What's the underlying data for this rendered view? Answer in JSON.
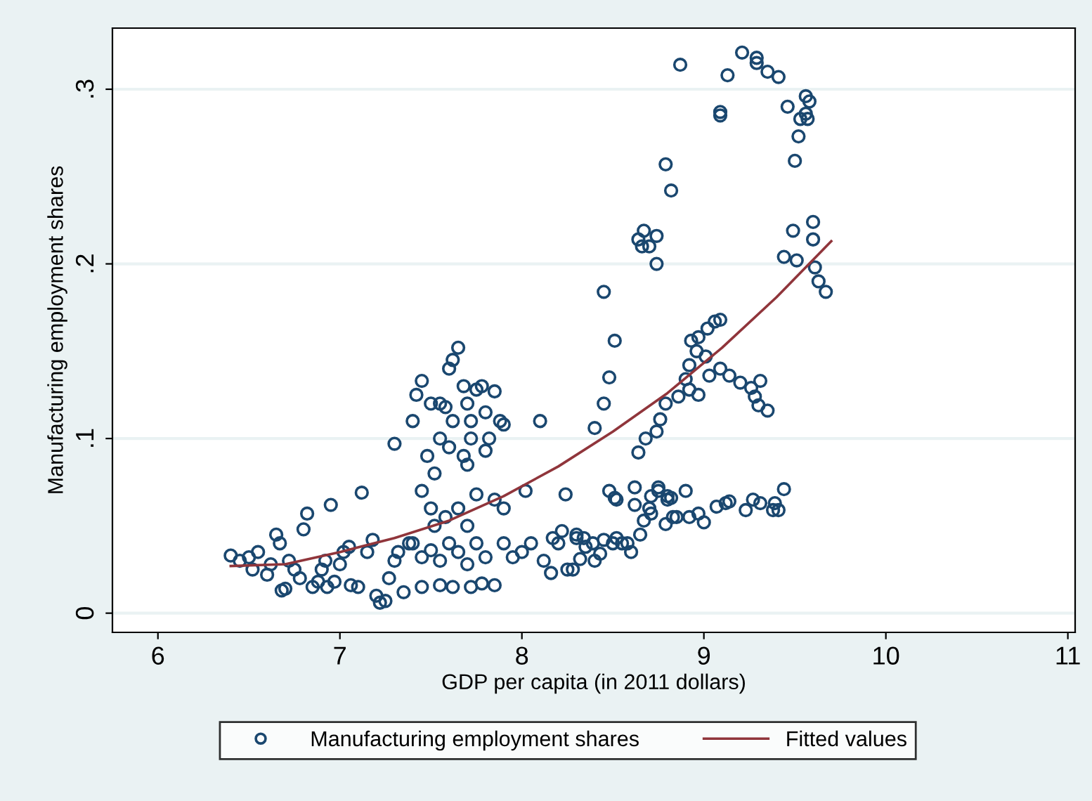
{
  "chart_data": {
    "type": "scatter",
    "xlabel": "GDP per capita (in 2011 dollars)",
    "ylabel": "Manufacturing employment shares",
    "xlim": [
      5.75,
      11.04
    ],
    "xticks": [
      6,
      7,
      8,
      9,
      10,
      11
    ],
    "ylim": [
      -0.011,
      0.335
    ],
    "yticks": [
      0,
      {
        "value": 0.1,
        "label": ".1"
      },
      {
        "value": 0.2,
        "label": ".2"
      },
      {
        "value": 0.3,
        "label": ".3"
      }
    ],
    "grid": "y",
    "legend": "bottom",
    "marker": "circle",
    "series": [
      {
        "name": "Manufacturing employment shares",
        "color": "#1a476f",
        "x": [
          6.4,
          6.45,
          6.5,
          6.55,
          6.52,
          6.6,
          6.62,
          6.65,
          6.67,
          6.68,
          6.7,
          6.72,
          6.75,
          6.78,
          6.8,
          6.82,
          6.85,
          6.88,
          6.9,
          6.92,
          6.93,
          6.95,
          6.97,
          7.0,
          7.02,
          7.05,
          7.06,
          7.1,
          7.12,
          7.15,
          7.18,
          7.2,
          7.22,
          7.25,
          7.27,
          7.3,
          7.32,
          7.3,
          7.35,
          7.38,
          7.4,
          7.42,
          7.45,
          7.5,
          7.48,
          7.45,
          7.5,
          7.52,
          7.55,
          7.58,
          7.6,
          7.62,
          7.65,
          7.68,
          7.7,
          7.72,
          7.75,
          7.78,
          7.8,
          7.82,
          7.85,
          7.88,
          7.9,
          7.72,
          7.7,
          7.68,
          7.62,
          7.55,
          7.6,
          7.65,
          7.58,
          7.52,
          7.8,
          7.75,
          7.7,
          7.85,
          7.4,
          7.45,
          7.5,
          7.55,
          7.6,
          7.62,
          7.65,
          7.7,
          7.72,
          7.75,
          7.78,
          7.8,
          7.85,
          7.9,
          7.45,
          7.55,
          7.9,
          7.95,
          8.0,
          8.02,
          8.05,
          8.1,
          8.12,
          8.2,
          8.25,
          8.3,
          8.35,
          8.4,
          8.45,
          8.48,
          8.5,
          8.52,
          8.55,
          8.6,
          8.65,
          8.7,
          8.75,
          8.8,
          8.85,
          8.9,
          8.45,
          8.51,
          8.48,
          8.45,
          8.4,
          8.64,
          8.68,
          8.74,
          8.76,
          8.79,
          8.86,
          8.9,
          8.92,
          8.96,
          8.97,
          8.93,
          9.02,
          9.06,
          9.09,
          9.01,
          9.03,
          9.09,
          9.14,
          9.2,
          9.26,
          9.31,
          9.28,
          9.3,
          9.35,
          8.97,
          8.92,
          8.24,
          8.17,
          8.22,
          8.3,
          8.34,
          8.39,
          8.43,
          8.52,
          8.58,
          8.32,
          8.28,
          8.16,
          8.51,
          8.62,
          8.62,
          8.71,
          8.75,
          8.8,
          8.82,
          8.67,
          8.71,
          8.79,
          8.83,
          8.92,
          8.97,
          9.0,
          9.07,
          9.12,
          9.14,
          9.23,
          9.27,
          9.31,
          9.38,
          9.41,
          9.39,
          9.44,
          8.87,
          9.21,
          9.29,
          9.29,
          9.35,
          9.41,
          9.13,
          9.09,
          9.09,
          9.56,
          9.58,
          9.46,
          9.56,
          9.53,
          9.57,
          9.52,
          9.5,
          8.79,
          8.82,
          8.67,
          8.64,
          8.66,
          8.7,
          8.74,
          8.74,
          9.49,
          9.6,
          9.6,
          9.44,
          9.51,
          9.61,
          9.63,
          9.67
        ],
        "values": [
          0.033,
          0.03,
          0.032,
          0.035,
          0.025,
          0.022,
          0.028,
          0.045,
          0.04,
          0.013,
          0.014,
          0.03,
          0.025,
          0.02,
          0.048,
          0.057,
          0.015,
          0.018,
          0.025,
          0.03,
          0.015,
          0.062,
          0.018,
          0.028,
          0.035,
          0.038,
          0.016,
          0.015,
          0.069,
          0.035,
          0.042,
          0.01,
          0.006,
          0.007,
          0.02,
          0.03,
          0.035,
          0.097,
          0.012,
          0.04,
          0.11,
          0.125,
          0.133,
          0.12,
          0.09,
          0.07,
          0.06,
          0.08,
          0.1,
          0.118,
          0.14,
          0.145,
          0.152,
          0.13,
          0.12,
          0.11,
          0.128,
          0.13,
          0.115,
          0.1,
          0.127,
          0.11,
          0.108,
          0.1,
          0.085,
          0.09,
          0.11,
          0.12,
          0.095,
          0.06,
          0.055,
          0.05,
          0.093,
          0.068,
          0.05,
          0.065,
          0.04,
          0.032,
          0.036,
          0.03,
          0.04,
          0.015,
          0.035,
          0.028,
          0.015,
          0.04,
          0.017,
          0.032,
          0.016,
          0.04,
          0.015,
          0.016,
          0.06,
          0.032,
          0.035,
          0.07,
          0.04,
          0.11,
          0.03,
          0.04,
          0.025,
          0.045,
          0.038,
          0.03,
          0.042,
          0.07,
          0.04,
          0.065,
          0.04,
          0.035,
          0.045,
          0.06,
          0.07,
          0.065,
          0.055,
          0.07,
          0.184,
          0.156,
          0.135,
          0.12,
          0.106,
          0.092,
          0.1,
          0.104,
          0.111,
          0.12,
          0.124,
          0.134,
          0.142,
          0.15,
          0.158,
          0.156,
          0.163,
          0.167,
          0.168,
          0.147,
          0.136,
          0.14,
          0.136,
          0.132,
          0.129,
          0.133,
          0.124,
          0.119,
          0.116,
          0.125,
          0.128,
          0.068,
          0.043,
          0.047,
          0.043,
          0.043,
          0.04,
          0.034,
          0.043,
          0.04,
          0.031,
          0.025,
          0.023,
          0.066,
          0.072,
          0.062,
          0.067,
          0.072,
          0.067,
          0.066,
          0.053,
          0.057,
          0.051,
          0.055,
          0.055,
          0.057,
          0.052,
          0.061,
          0.063,
          0.064,
          0.059,
          0.065,
          0.063,
          0.059,
          0.059,
          0.063,
          0.071,
          0.314,
          0.321,
          0.318,
          0.315,
          0.31,
          0.307,
          0.308,
          0.287,
          0.285,
          0.296,
          0.293,
          0.29,
          0.286,
          0.283,
          0.283,
          0.273,
          0.259,
          0.257,
          0.242,
          0.219,
          0.214,
          0.21,
          0.21,
          0.216,
          0.2,
          0.219,
          0.224,
          0.214,
          0.204,
          0.202,
          0.198,
          0.19,
          0.184
        ]
      },
      {
        "name": "Fitted values",
        "type": "line",
        "color": "#90353b",
        "marker": "none",
        "x": [
          6.4,
          6.7,
          7.0,
          7.3,
          7.6,
          7.9,
          8.2,
          8.5,
          8.8,
          9.1,
          9.4,
          9.7
        ],
        "values": [
          0.027,
          0.028,
          0.035,
          0.043,
          0.053,
          0.067,
          0.084,
          0.104,
          0.126,
          0.152,
          0.181,
          0.213
        ]
      }
    ]
  }
}
